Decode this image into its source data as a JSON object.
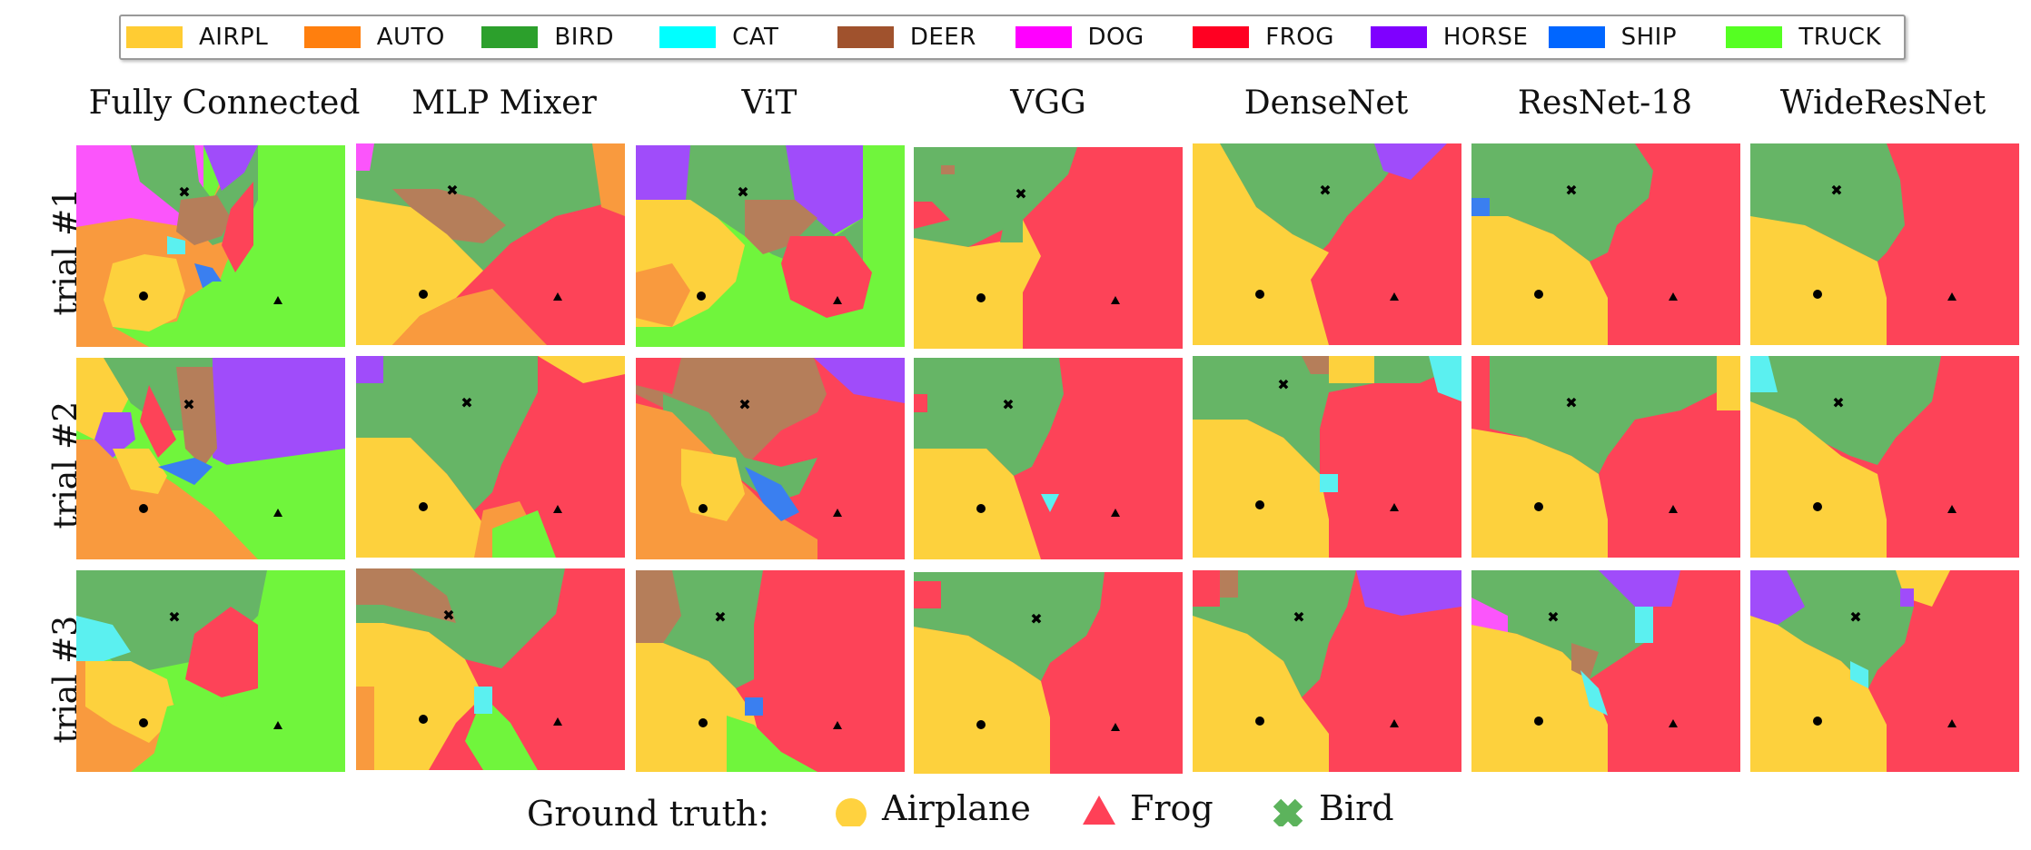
{
  "legend": {
    "items": [
      {
        "label": "AIRPL",
        "color": "#ffcc33"
      },
      {
        "label": "AUTO",
        "color": "#ff7f0e"
      },
      {
        "label": "BIRD",
        "color": "#2ca02c"
      },
      {
        "label": "CAT",
        "color": "#00ffff"
      },
      {
        "label": "DEER",
        "color": "#a0522d"
      },
      {
        "label": "DOG",
        "color": "#ff00ff"
      },
      {
        "label": "FROG",
        "color": "#ff0022"
      },
      {
        "label": "HORSE",
        "color": "#7f00ff"
      },
      {
        "label": "SHIP",
        "color": "#0066ff"
      },
      {
        "label": "TRUCK",
        "color": "#55ff22"
      }
    ]
  },
  "columns": [
    "Fully Connected",
    "MLP Mixer",
    "ViT",
    "VGG",
    "DenseNet",
    "ResNet-18",
    "WideResNet"
  ],
  "rows": [
    "trial #1",
    "trial #2",
    "trial #3"
  ],
  "ground_truth": {
    "title": "Ground truth:",
    "items": [
      {
        "label": "Airplane",
        "color": "#ffd23f",
        "marker": "circle-icon"
      },
      {
        "label": "Frog",
        "color": "#ff4057",
        "marker": "triangle-icon"
      },
      {
        "label": "Bird",
        "color": "#5cb35c",
        "marker": "cross-icon"
      }
    ]
  },
  "region_colors": {
    "airpl": "#fdd13d",
    "auto": "#f99a3e",
    "bird": "#66b566",
    "cat": "#5bf0f0",
    "deer": "#b57e5a",
    "dog": "#fb55fb",
    "frog": "#fd4358",
    "horse": "#a04cfa",
    "ship": "#3a7ff0",
    "truck": "#70f53c"
  }
}
